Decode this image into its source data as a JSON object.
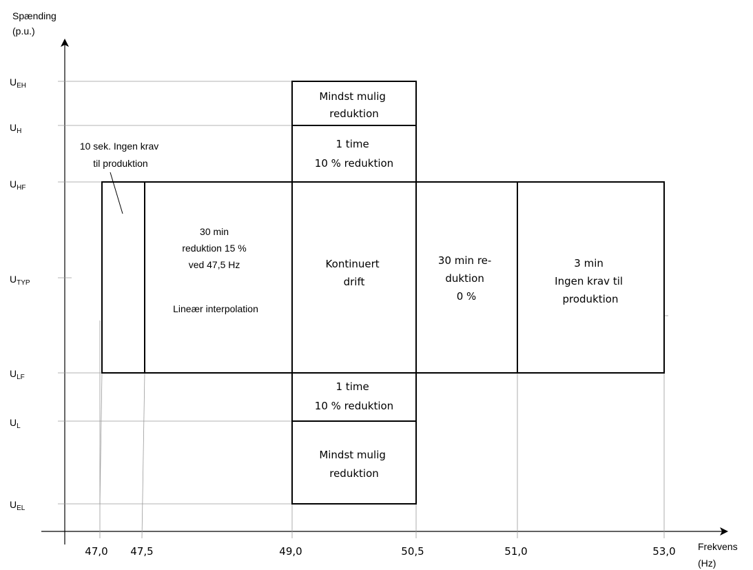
{
  "diagram": {
    "y_axis_title": [
      "Spænding",
      "(p.u.)"
    ],
    "x_axis_title": [
      "Frekvens",
      "(Hz)"
    ],
    "y_levels": [
      {
        "id": "ueh",
        "main": "U",
        "sub": "EH"
      },
      {
        "id": "uh",
        "main": "U",
        "sub": "H"
      },
      {
        "id": "uhf",
        "main": "U",
        "sub": "HF"
      },
      {
        "id": "utyp",
        "main": "U",
        "sub": "TYP"
      },
      {
        "id": "ulf",
        "main": "U",
        "sub": "LF"
      },
      {
        "id": "ul",
        "main": "U",
        "sub": "L"
      },
      {
        "id": "uel",
        "main": "U",
        "sub": "EL"
      }
    ],
    "x_ticks": [
      "47,0",
      "47,5",
      "49,0",
      "50,5",
      "51,0",
      "53,0"
    ],
    "regions": [
      {
        "id": "top-reduction",
        "lines": [
          "Mindst mulig",
          "reduktion"
        ]
      },
      {
        "id": "upper-1-time",
        "lines": [
          "1 time",
          "10 % reduktion"
        ]
      },
      {
        "id": "10-sek",
        "lines": [
          "10 sek. Ingen krav",
          "til produktion"
        ]
      },
      {
        "id": "30-min-47-5",
        "lines": [
          "30 min",
          "reduktion 15 %",
          "ved 47,5 Hz",
          "",
          "Lineær  interpolation"
        ]
      },
      {
        "id": "kontinuert",
        "lines": [
          "Kontinuert",
          "drift"
        ]
      },
      {
        "id": "30-min-0",
        "lines": [
          "30 min re-",
          "duktion",
          "0 %"
        ]
      },
      {
        "id": "3-min",
        "lines": [
          "3 min",
          "Ingen krav til",
          "produktion"
        ]
      },
      {
        "id": "lower-1-time",
        "lines": [
          "1 time",
          "10 % reduktion"
        ]
      },
      {
        "id": "bottom-reduction",
        "lines": [
          "Mindst mulig",
          "reduktion"
        ]
      }
    ]
  }
}
